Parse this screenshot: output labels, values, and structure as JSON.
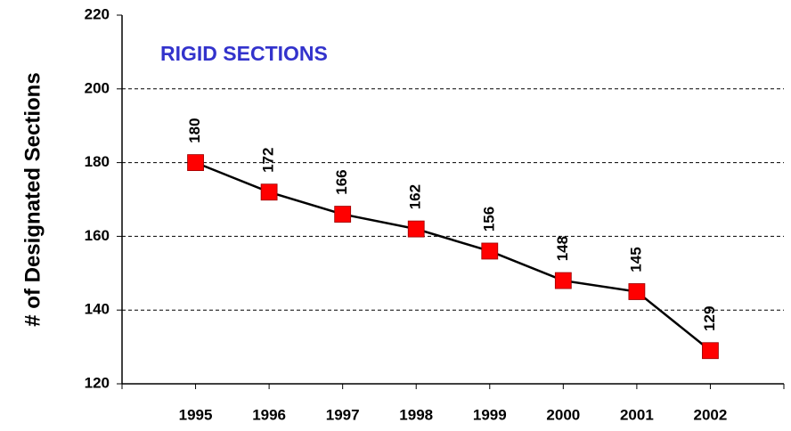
{
  "chart_data": {
    "type": "line",
    "title": "RIGID SECTIONS",
    "y_label": "# of Designated Sections",
    "categories": [
      "1995",
      "1996",
      "1997",
      "1998",
      "1999",
      "2000",
      "2001",
      "2002"
    ],
    "series": [
      {
        "name": "Rigid Sections",
        "color": "#ff0000",
        "values": [
          180,
          172,
          166,
          162,
          156,
          148,
          145,
          129
        ]
      }
    ],
    "ylim": [
      120,
      220
    ],
    "yticks": [
      120,
      140,
      160,
      180,
      200,
      220
    ],
    "grid": true
  }
}
